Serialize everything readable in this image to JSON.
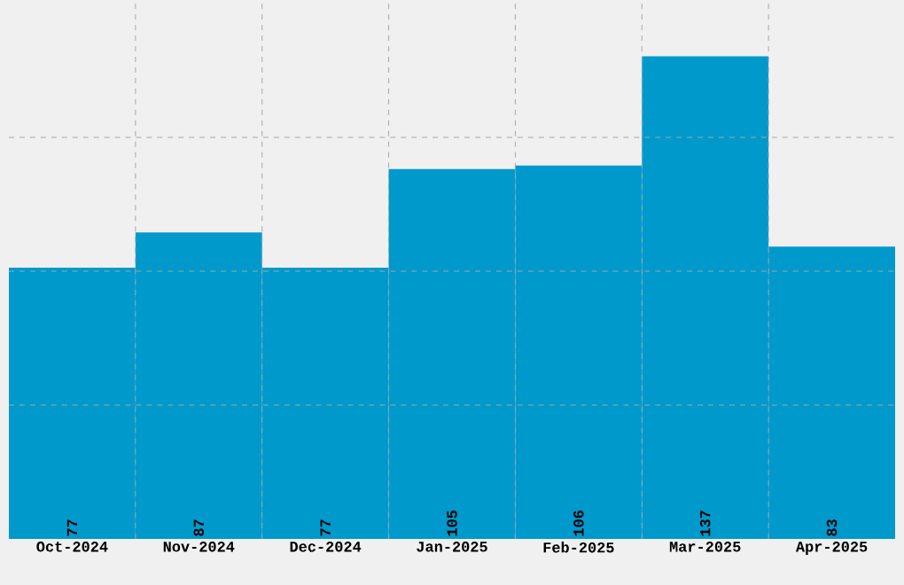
{
  "chart_data": {
    "type": "bar",
    "categories": [
      "Oct-2024",
      "Nov-2024",
      "Dec-2024",
      "Jan-2025",
      "Feb-2025",
      "Mar-2025",
      "Apr-2025"
    ],
    "values": [
      77,
      87,
      77,
      105,
      106,
      137,
      83
    ],
    "color": "#0099cc",
    "ylim": [
      0,
      152
    ],
    "yticks": [
      {
        "value": 38,
        "label": null
      },
      {
        "value": 76,
        "label": null
      },
      {
        "value": 114,
        "label": null
      }
    ],
    "grid": true,
    "data_labels": true,
    "tick_labels": "x"
  }
}
